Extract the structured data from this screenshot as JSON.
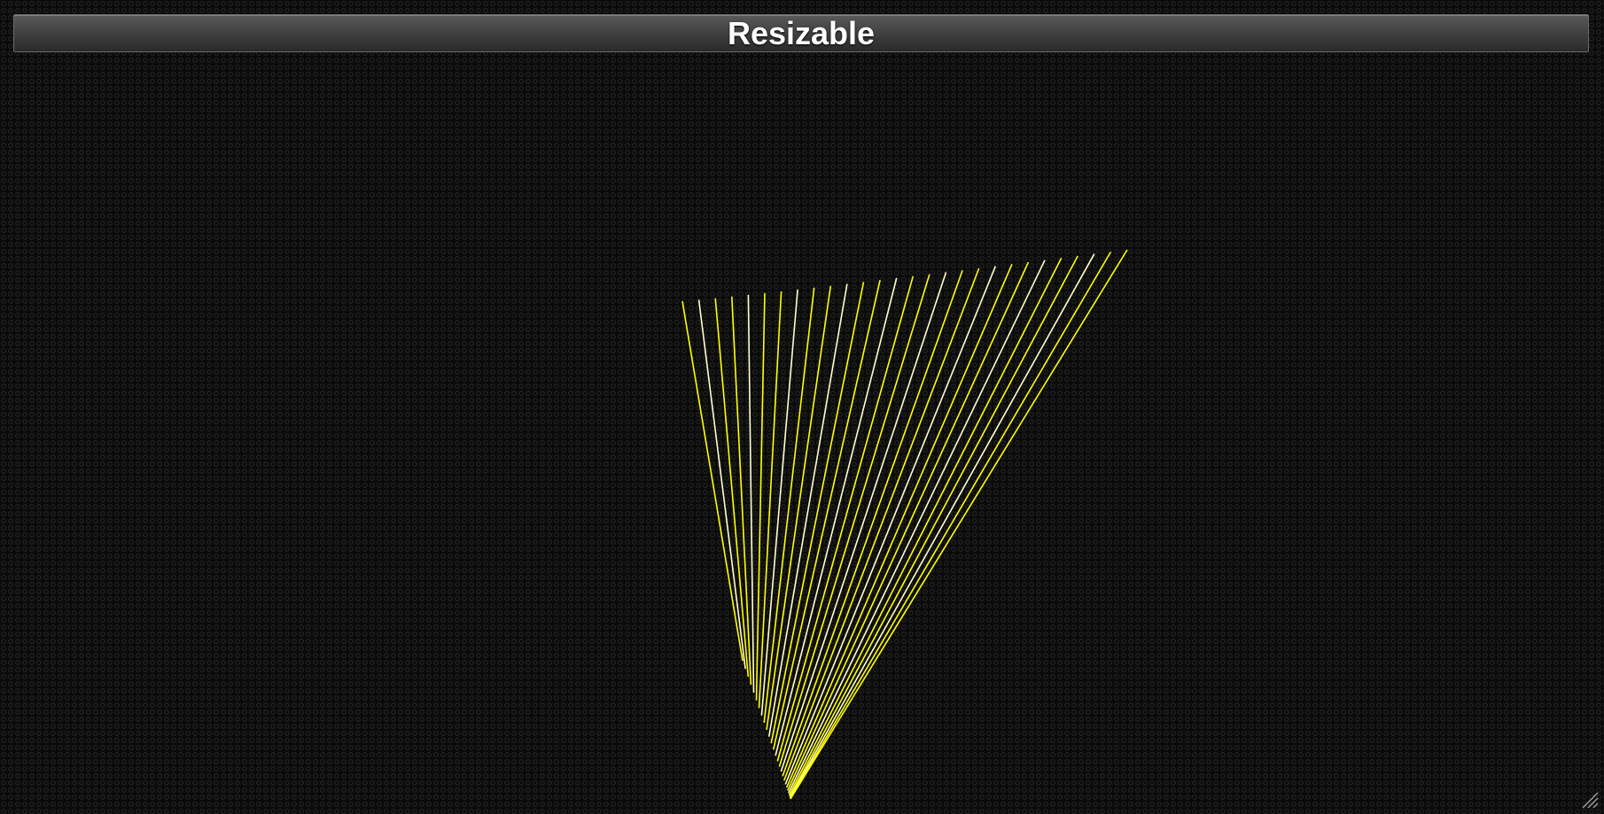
{
  "window": {
    "title": "Resizable"
  },
  "drawing": {
    "stroke_color": "#ffff00",
    "line_count": 28
  },
  "icons": {
    "resize": "resize-grip-icon"
  }
}
